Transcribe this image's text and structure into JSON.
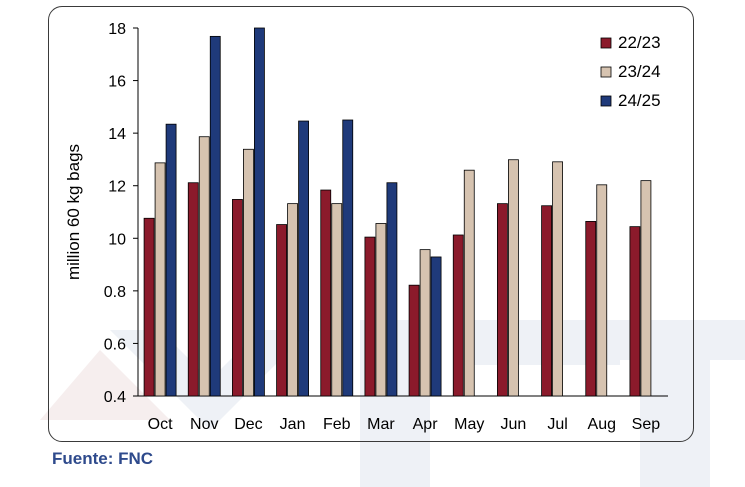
{
  "chart_data": {
    "type": "bar",
    "ylabel": "million 60 kg bags",
    "ylim": [
      0.4,
      18
    ],
    "y_ticks": [
      "0.4",
      "0.6",
      "0.8",
      "10",
      "12",
      "14",
      "16",
      "18"
    ],
    "categories": [
      "Oct",
      "Nov",
      "Dec",
      "Jan",
      "Feb",
      "Mar",
      "Apr",
      "May",
      "Jun",
      "Jul",
      "Aug",
      "Sep"
    ],
    "series": [
      {
        "name": "22/23",
        "color": "#8b1a2b",
        "values": [
          8.9,
          10.6,
          9.8,
          8.6,
          10.25,
          8.0,
          5.7,
          8.1,
          9.6,
          9.5,
          8.75,
          8.5
        ]
      },
      {
        "name": "23/24",
        "color": "#d6c3b0",
        "values": [
          11.55,
          12.8,
          12.2,
          9.6,
          9.6,
          8.65,
          7.4,
          11.2,
          11.7,
          11.6,
          10.5,
          10.7
        ]
      },
      {
        "name": "24/25",
        "color": "#1f3a7a",
        "values": [
          13.4,
          17.6,
          18.0,
          13.55,
          13.6,
          10.6,
          7.05,
          null,
          null,
          null,
          null,
          null
        ]
      }
    ],
    "legend_position": "top-right",
    "grid": false
  },
  "source": "Fuente: FNC"
}
